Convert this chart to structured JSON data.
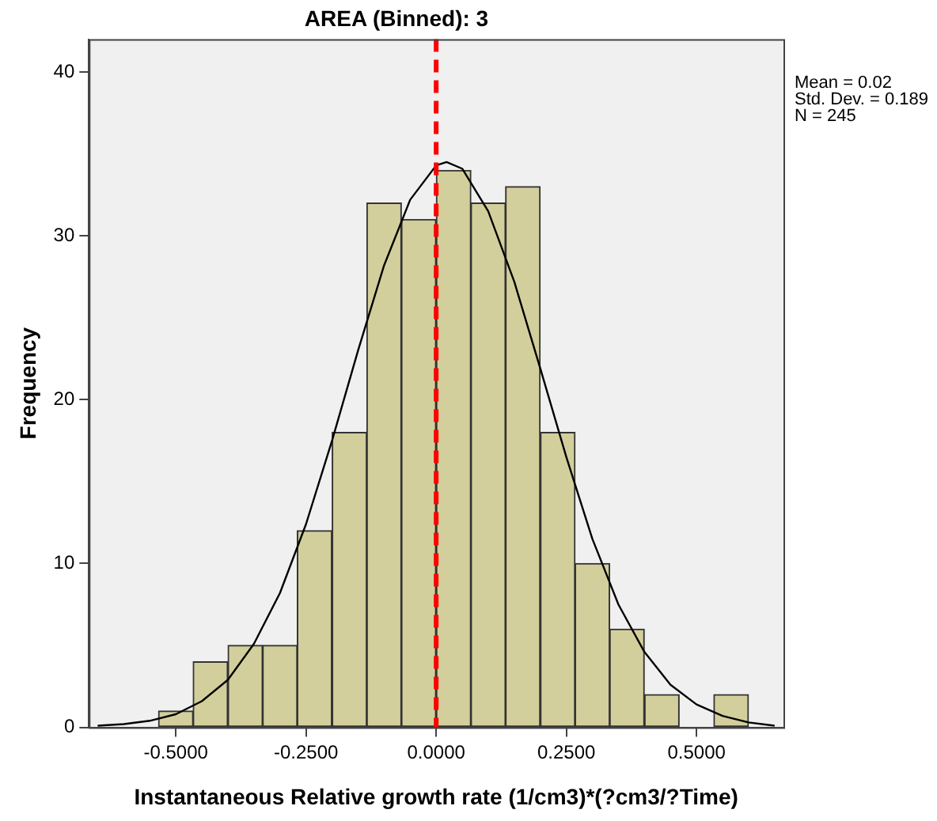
{
  "chart_data": {
    "type": "histogram",
    "title": "AREA (Binned): 3",
    "xlabel": "Instantaneous Relative growth rate (1/cm3)*(?cm3/?Time)",
    "ylabel": "Frequency",
    "bins": [
      -0.533,
      -0.467,
      -0.4,
      -0.333,
      -0.267,
      -0.2,
      -0.133,
      -0.067,
      0,
      0.067,
      0.133,
      0.2,
      0.267,
      0.333,
      0.4,
      0.467,
      0.533,
      0.6
    ],
    "values": [
      1,
      4,
      5,
      5,
      12,
      18,
      32,
      31,
      34,
      32,
      33,
      18,
      10,
      6,
      2,
      0,
      2
    ],
    "color": "#d3cf9c",
    "series": [
      {
        "type": "line",
        "color": "#000000",
        "marker": "none",
        "x": [
          -0.65,
          -0.6,
          -0.55,
          -0.5,
          -0.45,
          -0.4,
          -0.35,
          -0.3,
          -0.25,
          -0.2,
          -0.15,
          -0.1,
          -0.05,
          0,
          0.02,
          0.05,
          0.1,
          0.15,
          0.2,
          0.25,
          0.3,
          0.35,
          0.4,
          0.45,
          0.5,
          0.55,
          0.6,
          0.65
        ],
        "values": [
          0.1,
          0.2,
          0.4,
          0.8,
          1.6,
          2.9,
          5.1,
          8.2,
          12.4,
          17.5,
          23,
          28.2,
          32.2,
          34.3,
          34.5,
          34.1,
          31.5,
          27.2,
          21.9,
          16.5,
          11.5,
          7.5,
          4.6,
          2.6,
          1.4,
          0.7,
          0.3,
          0.1
        ]
      }
    ],
    "xlim": [
      -0.667,
      0.667
    ],
    "xticks": [
      {
        "value": -0.5,
        "label": "-0.5000"
      },
      {
        "value": -0.25,
        "label": "-0.2500"
      },
      {
        "value": 0,
        "label": "0.0000"
      },
      {
        "value": 0.25,
        "label": "0.2500"
      },
      {
        "value": 0.5,
        "label": "0.5000"
      }
    ],
    "ylim": [
      0,
      42
    ],
    "yticks": [
      0,
      10,
      20,
      30,
      40
    ],
    "ref_lines": [
      {
        "axis": "x",
        "value": 0,
        "color": "#ff0000",
        "line_style": "dashed"
      }
    ],
    "annotations": [
      "Mean = 0.02",
      "Std. Dev. = 0.189",
      "N = 245"
    ]
  }
}
